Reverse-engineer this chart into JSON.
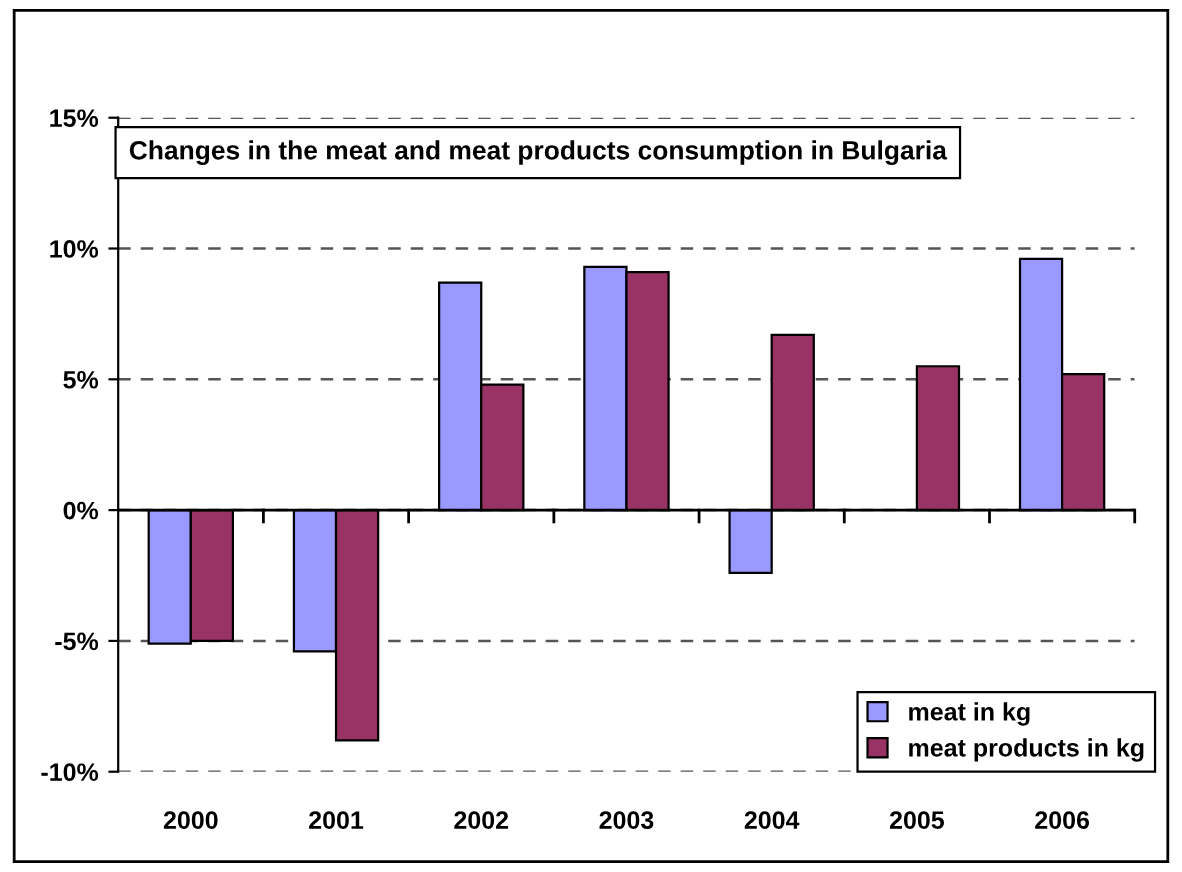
{
  "chart_data": {
    "type": "bar",
    "title": "Changes in the meat and meat products consumption in Bulgaria",
    "categories": [
      "2000",
      "2001",
      "2002",
      "2003",
      "2004",
      "2005",
      "2006"
    ],
    "series": [
      {
        "name": "meat in kg",
        "color": "#9999ff",
        "values": [
          -5.1,
          -5.4,
          8.7,
          9.3,
          -2.4,
          null,
          9.6
        ]
      },
      {
        "name": "meat products in kg",
        "color": "#993366",
        "values": [
          -5.0,
          -8.8,
          4.8,
          9.1,
          6.7,
          5.5,
          5.2
        ]
      }
    ],
    "ylim": [
      -10,
      15
    ],
    "yticks": [
      {
        "value": -10,
        "label": "-10%"
      },
      {
        "value": -5,
        "label": "-5%"
      },
      {
        "value": 0,
        "label": "0%"
      },
      {
        "value": 5,
        "label": "5%"
      },
      {
        "value": 10,
        "label": "10%"
      },
      {
        "value": 15,
        "label": "15%"
      }
    ],
    "grid": "y",
    "legend": "bottom right"
  }
}
